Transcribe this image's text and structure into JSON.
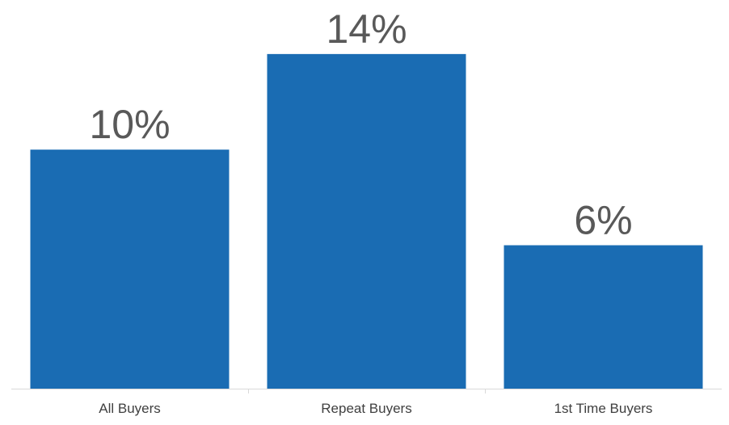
{
  "chart_data": {
    "type": "bar",
    "categories": [
      "All Buyers",
      "Repeat Buyers",
      "1st Time Buyers"
    ],
    "values": [
      10,
      14,
      6
    ],
    "data_labels": [
      "10%",
      "14%",
      "6%"
    ],
    "title": "",
    "xlabel": "",
    "ylabel": "",
    "unit": "%",
    "ylim": [
      0,
      14.3
    ],
    "grid": false,
    "legend": "none",
    "colors": {
      "bar": "#1a6cb3",
      "data_label": "#595959",
      "tick_label": "#404040",
      "axis": "#d9d9d9"
    }
  }
}
